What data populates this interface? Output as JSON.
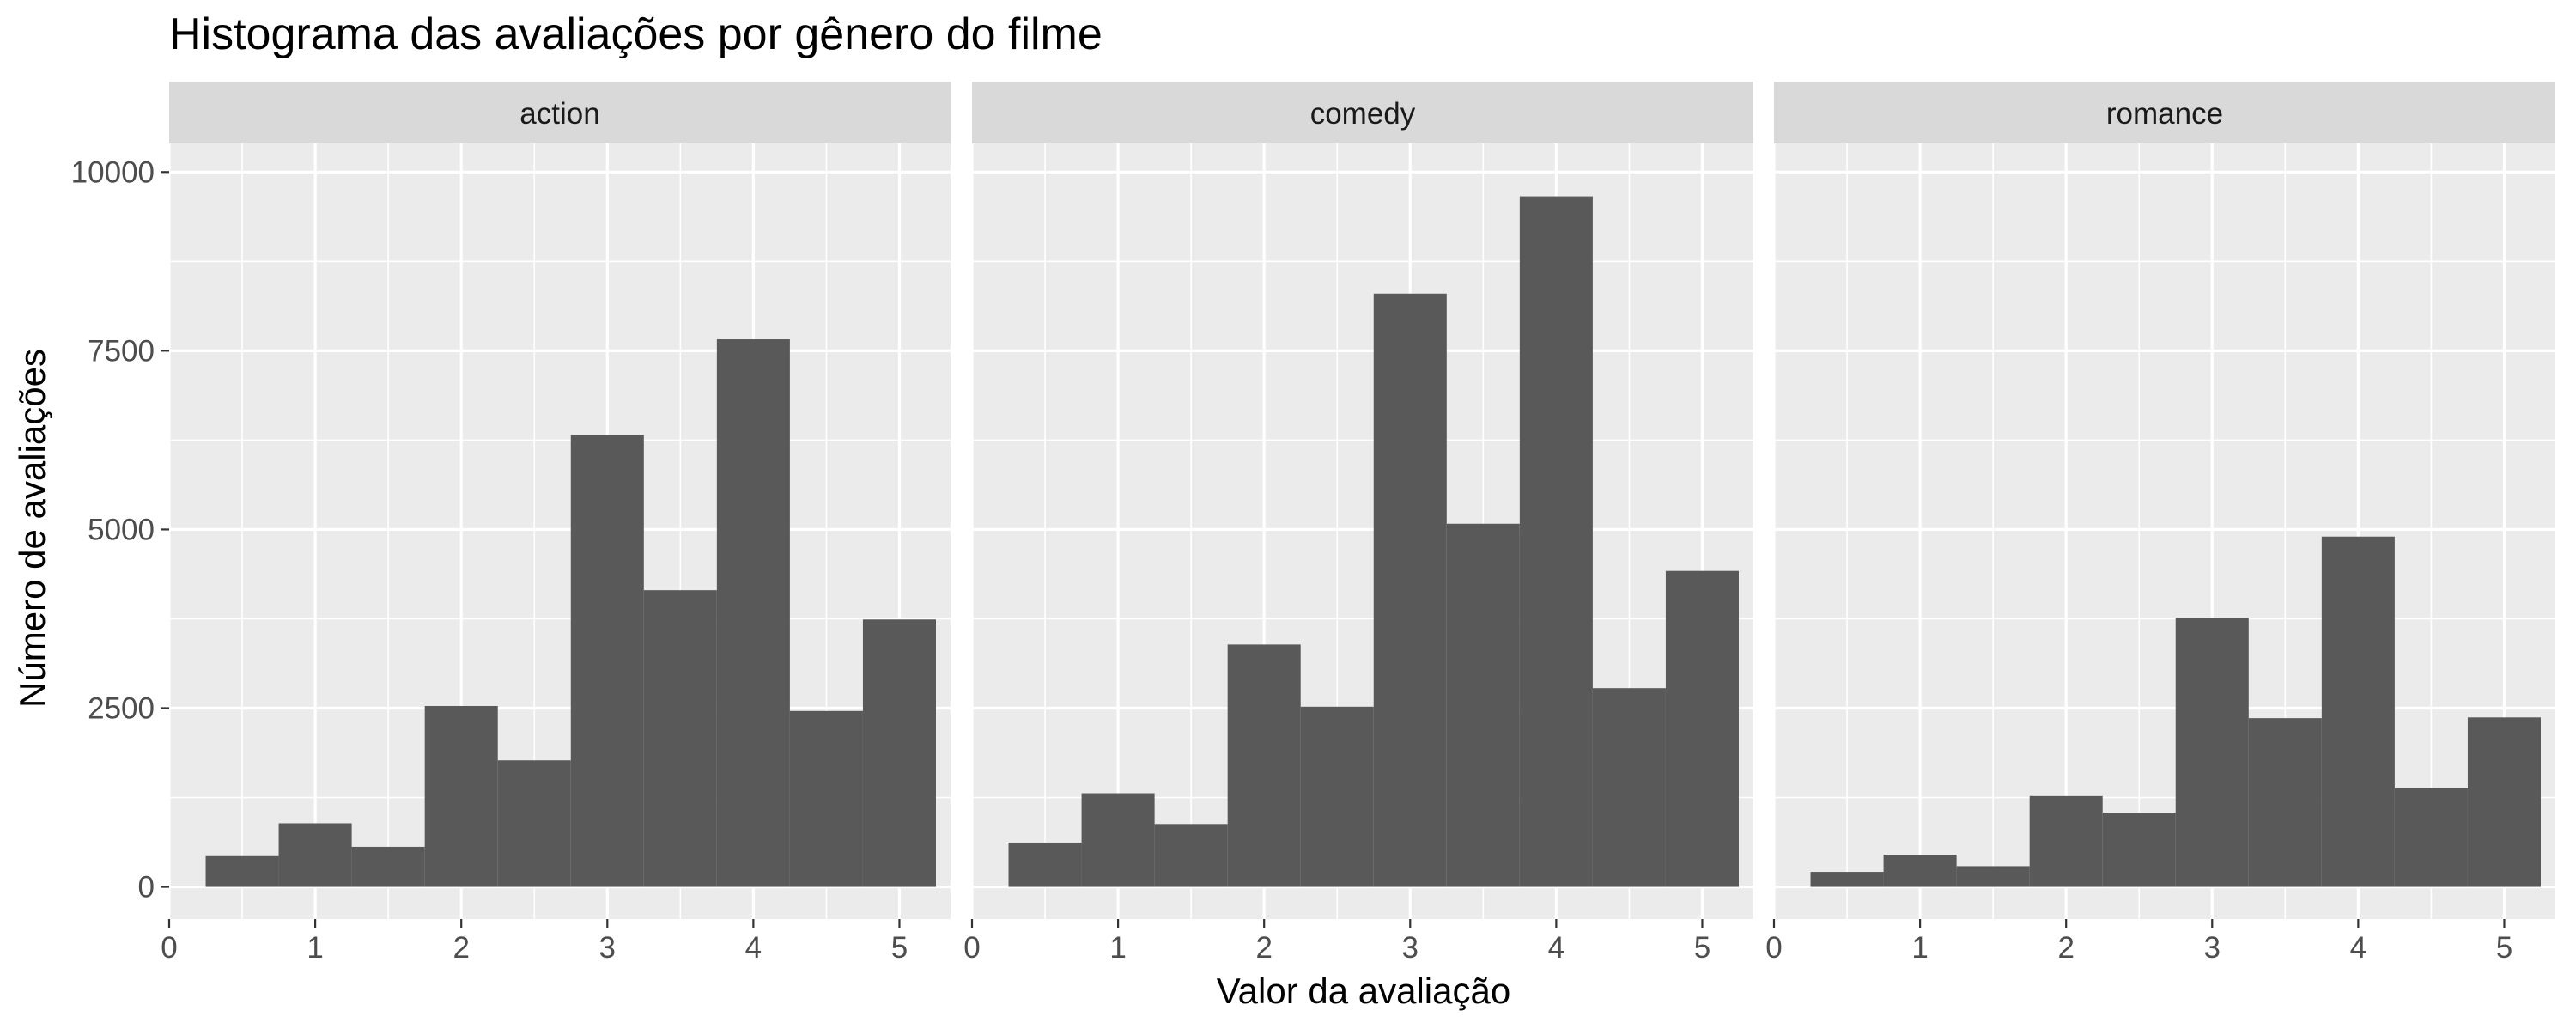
{
  "chart_data": {
    "type": "bar",
    "title": "Histograma das avaliações por gênero do filme",
    "xlabel": "Valor da avaliação",
    "ylabel": "Número de avaliações",
    "xlim": [
      0,
      5.35
    ],
    "ylim": [
      -450,
      10400
    ],
    "x_ticks": [
      0,
      1,
      2,
      3,
      4,
      5
    ],
    "y_ticks": [
      0,
      2500,
      5000,
      7500,
      10000
    ],
    "grid": true,
    "bin_width": 0.5,
    "bin_centers": [
      0.5,
      1.0,
      1.5,
      2.0,
      2.5,
      3.0,
      3.5,
      4.0,
      4.5,
      5.0
    ],
    "panels": [
      {
        "name": "action",
        "values": [
          430,
          890,
          560,
          2530,
          1770,
          6320,
          4150,
          7660,
          2460,
          3740
        ]
      },
      {
        "name": "comedy",
        "values": [
          620,
          1310,
          880,
          3390,
          2520,
          8300,
          5080,
          9660,
          2780,
          4420
        ]
      },
      {
        "name": "romance",
        "values": [
          210,
          450,
          290,
          1270,
          1040,
          3760,
          2360,
          4900,
          1380,
          2370
        ]
      }
    ],
    "colors": {
      "bar": "#595959",
      "panel_bg": "#ebebeb",
      "strip_bg": "#d9d9d9",
      "grid_major": "#ffffff",
      "axis_text": "#4d4d4d"
    }
  }
}
